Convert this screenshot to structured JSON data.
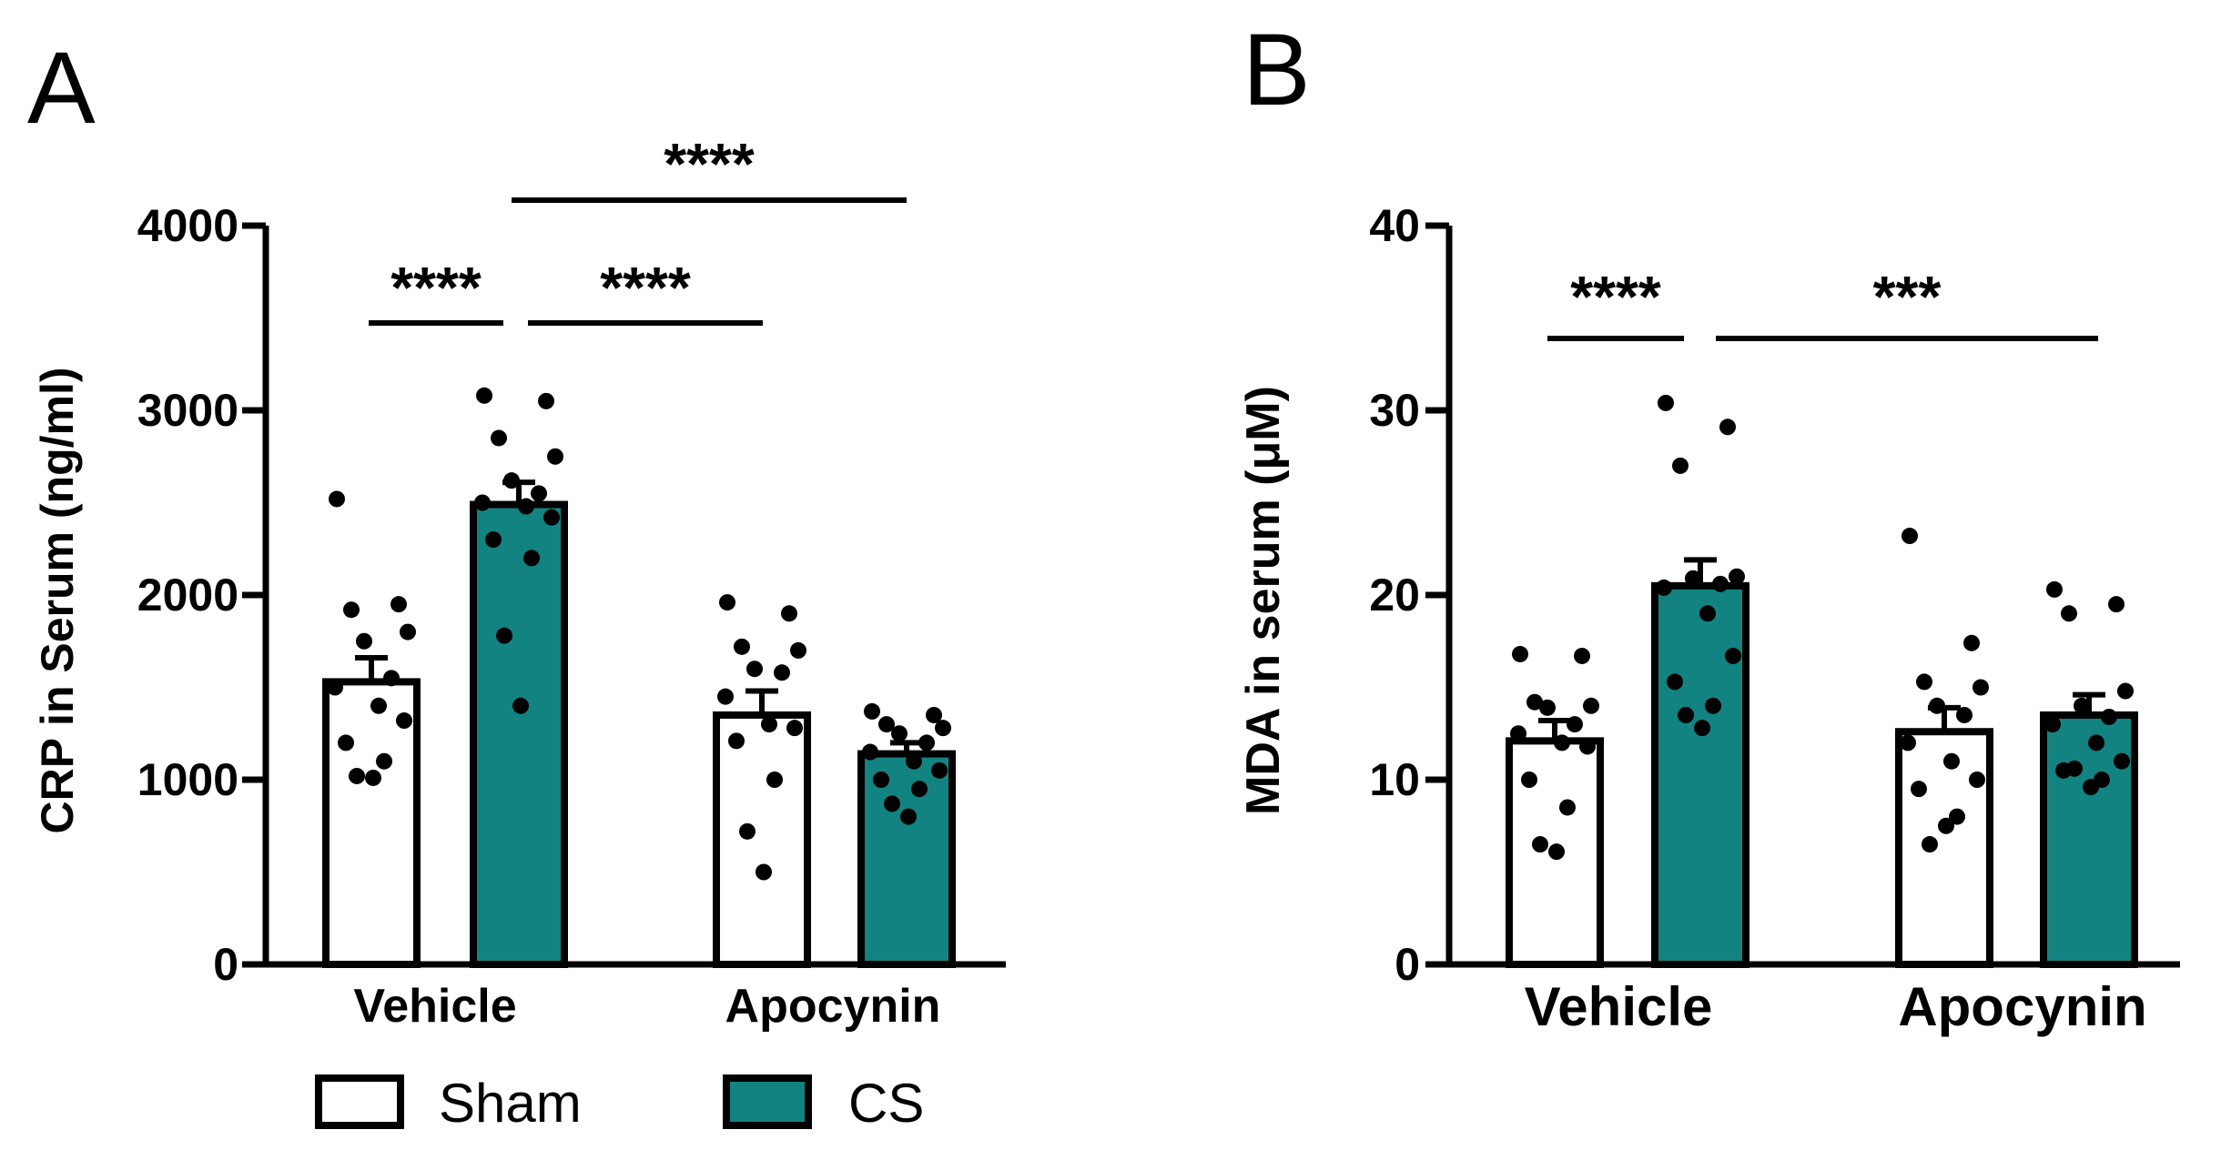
{
  "panels": {
    "a": {
      "letter": "A"
    },
    "b": {
      "letter": "B"
    }
  },
  "legend": {
    "items": [
      {
        "label": "Sham",
        "fill": "#ffffff"
      },
      {
        "label": "CS",
        "fill": "#138381"
      }
    ]
  },
  "colors": {
    "sham": "#ffffff",
    "cs": "#138381",
    "ink": "#000000"
  },
  "chart_data": [
    {
      "type": "bar",
      "panel": "A",
      "ylabel": "CRP in Serum (ng/ml)",
      "xlabel": "",
      "categories": [
        "Vehicle",
        "Apocynin"
      ],
      "ylim": [
        0,
        4000
      ],
      "yticks": [
        0,
        1000,
        2000,
        3000,
        4000
      ],
      "ytick_labels": [
        "0",
        "1000",
        "2000",
        "3000",
        "4000"
      ],
      "series": [
        {
          "name": "Sham",
          "values": [
            1530,
            1350
          ],
          "sem": [
            130,
            130
          ],
          "points": [
            [
              2520,
              1950,
              1920,
              1800,
              1750,
              1550,
              1500,
              1400,
              1320,
              1200,
              1100,
              1020,
              1010
            ],
            [
              1960,
              1900,
              1720,
              1700,
              1600,
              1580,
              1450,
              1300,
              1280,
              1210,
              1000,
              720,
              500
            ]
          ]
        },
        {
          "name": "CS",
          "values": [
            2490,
            1140
          ],
          "sem": [
            120,
            60
          ],
          "points": [
            [
              3080,
              3050,
              2850,
              2750,
              2620,
              2550,
              2500,
              2480,
              2420,
              2300,
              2200,
              1780,
              1400
            ],
            [
              1370,
              1350,
              1300,
              1280,
              1250,
              1200,
              1150,
              1100,
              1050,
              1000,
              950,
              870,
              800
            ]
          ]
        }
      ],
      "significance": [
        {
          "label": "****",
          "from": "Vehicle Sham",
          "to": "Vehicle CS",
          "y": 3460
        },
        {
          "label": "****",
          "from": "Vehicle CS",
          "to": "Apocynin Sham",
          "y": 3460
        },
        {
          "label": "****",
          "from": "Vehicle CS",
          "to": "Apocynin CS",
          "y": 4140
        }
      ]
    },
    {
      "type": "bar",
      "panel": "B",
      "ylabel": "MDA in serum (μM)",
      "xlabel": "",
      "categories": [
        "Vehicle",
        "Apocynin"
      ],
      "ylim": [
        0,
        40
      ],
      "yticks": [
        0,
        10,
        20,
        30,
        40
      ],
      "ytick_labels": [
        "0",
        "10",
        "20",
        "30",
        "40"
      ],
      "series": [
        {
          "name": "Sham",
          "values": [
            12.1,
            12.6
          ],
          "sem": [
            1.1,
            1.3
          ],
          "points": [
            [
              16.8,
              16.7,
              14.2,
              14.0,
              13.9,
              13.0,
              12.5,
              12.0,
              11.8,
              10.0,
              8.5,
              6.5,
              6.1
            ],
            [
              23.2,
              17.4,
              15.3,
              15.0,
              14.0,
              13.5,
              12.0,
              11.0,
              10.0,
              9.5,
              8.0,
              6.5,
              7.5
            ]
          ]
        },
        {
          "name": "CS",
          "values": [
            20.5,
            13.5
          ],
          "sem": [
            1.4,
            1.1
          ],
          "points": [
            [
              30.4,
              29.1,
              27.0,
              21.0,
              20.9,
              20.6,
              20.4,
              19.0,
              16.7,
              15.3,
              14.0,
              13.5,
              12.8
            ],
            [
              20.3,
              19.5,
              19.0,
              14.8,
              14.0,
              13.4,
              13.0,
              12.0,
              11.0,
              10.5,
              10.0,
              10.6,
              9.6
            ]
          ]
        }
      ],
      "significance": [
        {
          "label": "****",
          "from": "Vehicle Sham",
          "to": "Vehicle CS",
          "y": 34.0
        },
        {
          "label": "***",
          "from": "Vehicle CS",
          "to": "Apocynin CS",
          "y": 34.0
        }
      ]
    }
  ]
}
